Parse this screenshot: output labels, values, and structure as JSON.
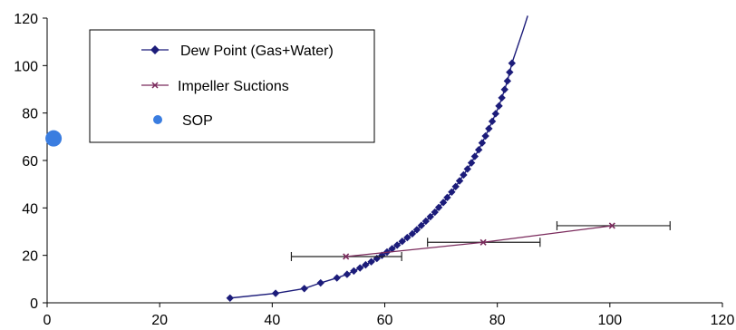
{
  "chart_data": {
    "type": "scatter",
    "xlim": [
      0,
      120
    ],
    "ylim": [
      0,
      120
    ],
    "x_ticks": [
      "0",
      "20",
      "40",
      "60",
      "80",
      "100",
      "120"
    ],
    "y_ticks": [
      "0",
      "20",
      "40",
      "60",
      "80",
      "100",
      "120"
    ],
    "grid": false,
    "legend_position": "top-left",
    "colors": {
      "dew_point": "#1c1c7a",
      "impeller": "#7a2a5c",
      "sop": "#3a7de0"
    },
    "series": [
      {
        "name": "Dew Point (Gas+Water)",
        "kind": "line-markers",
        "marker": "diamond",
        "points": [
          [
            32.5,
            2
          ],
          [
            40.6,
            4
          ],
          [
            45.7,
            6
          ],
          [
            48.6,
            8.4
          ],
          [
            51.5,
            10.5
          ],
          [
            53.3,
            12
          ],
          [
            54.5,
            13.4
          ],
          [
            55.6,
            14.7
          ],
          [
            56.6,
            16
          ],
          [
            57.6,
            17.3
          ],
          [
            58.6,
            18.7
          ],
          [
            59.5,
            20
          ],
          [
            60.4,
            21.4
          ],
          [
            61.3,
            22.8
          ],
          [
            62.2,
            24.3
          ],
          [
            63.1,
            25.9
          ],
          [
            64.0,
            27.5
          ],
          [
            64.9,
            29.1
          ],
          [
            65.7,
            30.8
          ],
          [
            66.5,
            32.6
          ],
          [
            67.3,
            34.4
          ],
          [
            68.1,
            36.3
          ],
          [
            68.9,
            38.2
          ],
          [
            69.6,
            40.2
          ],
          [
            70.4,
            42.3
          ],
          [
            71.1,
            44.4
          ],
          [
            71.9,
            46.7
          ],
          [
            72.6,
            49.0
          ],
          [
            73.3,
            51.4
          ],
          [
            74.0,
            53.9
          ],
          [
            74.7,
            56.4
          ],
          [
            75.4,
            59.0
          ],
          [
            76.0,
            61.7
          ],
          [
            76.7,
            64.5
          ],
          [
            77.3,
            67.4
          ],
          [
            77.9,
            70.3
          ],
          [
            78.5,
            73.4
          ],
          [
            79.1,
            76.5
          ],
          [
            79.7,
            79.7
          ],
          [
            80.3,
            83.0
          ],
          [
            80.8,
            86.4
          ],
          [
            81.3,
            89.9
          ],
          [
            81.8,
            93.5
          ],
          [
            82.2,
            97.2
          ],
          [
            82.6,
            101.0
          ]
        ],
        "line_extension": [
          [
            82.6,
            101.0
          ],
          [
            83.6,
            108
          ],
          [
            84.6,
            115
          ],
          [
            85.4,
            121
          ]
        ]
      },
      {
        "name": "Impeller Suctions",
        "kind": "line-markers",
        "marker": "x",
        "points": [
          [
            53.1,
            19.5
          ],
          [
            77.5,
            25.5
          ],
          [
            100.4,
            32.5
          ]
        ],
        "x_error": [
          [
            43.4,
            63.0
          ],
          [
            67.6,
            87.6
          ],
          [
            90.6,
            110.7
          ]
        ]
      },
      {
        "name": "SOP",
        "kind": "scatter",
        "marker": "circle",
        "points": [
          [
            0.5,
            67
          ]
        ]
      }
    ]
  }
}
